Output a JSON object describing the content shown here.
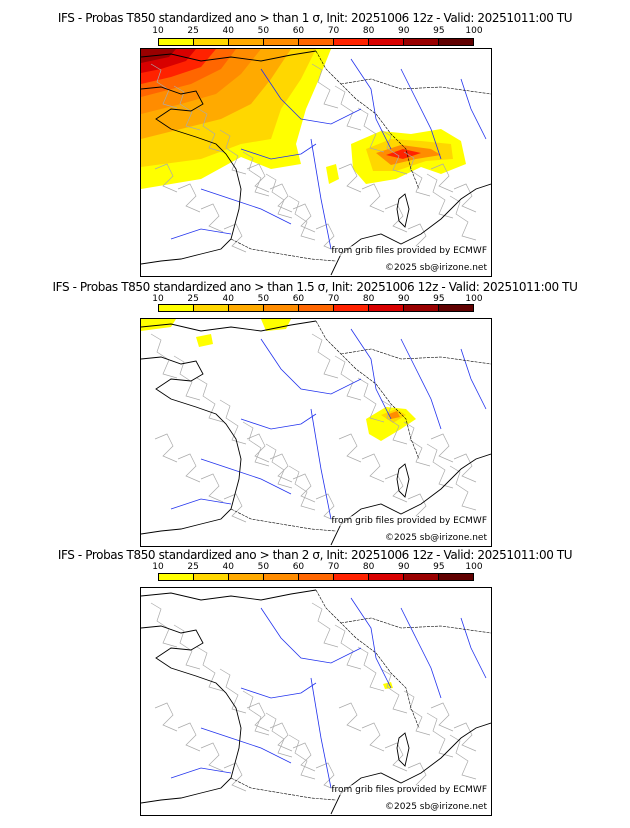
{
  "colorbar": {
    "ticks": [
      "10",
      "25",
      "40",
      "50",
      "60",
      "70",
      "80",
      "90",
      "95",
      "100"
    ],
    "colors": [
      "#ffff00",
      "#ffd700",
      "#ffaa00",
      "#ff8c00",
      "#ff6600",
      "#ff2200",
      "#d80000",
      "#990000",
      "#600000"
    ]
  },
  "panels": [
    {
      "title": "IFS - Probas T850  standardized ano > than 1 σ, Init: 20251006 12z - Valid: 20251011:00 TU"
    },
    {
      "title": "IFS - Probas T850  standardized ano > than 1.5 σ, Init: 20251006 12z - Valid: 20251011:00 TU"
    },
    {
      "title": "IFS - Probas T850  standardized ano > than 2 σ, Init: 20251006 12z - Valid: 20251011:00 TU"
    }
  ],
  "credits": {
    "source": "from grib files provided by ECMWF",
    "copyright": "©2025 sb@irizone.net"
  }
}
